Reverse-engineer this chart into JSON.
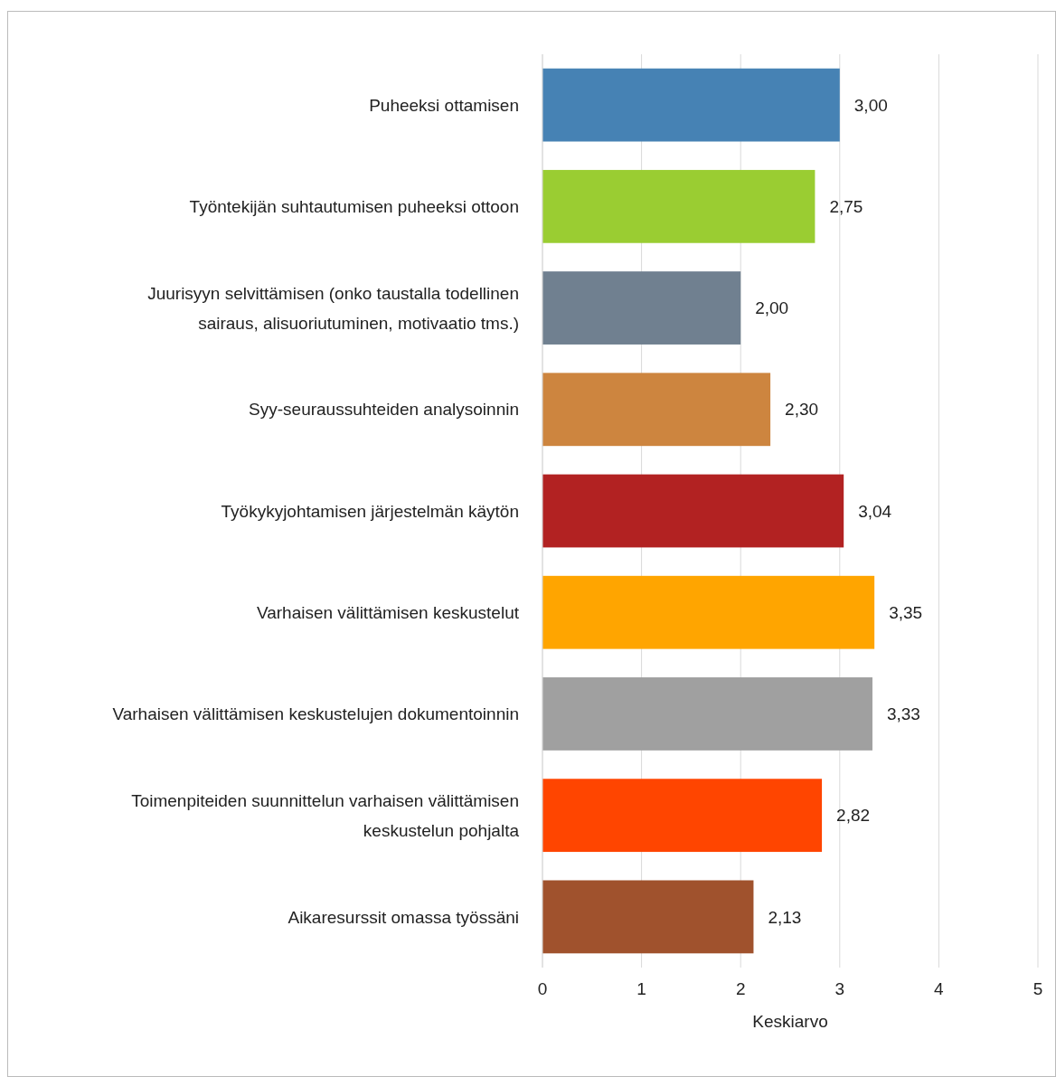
{
  "chart_data": {
    "type": "bar",
    "orientation": "horizontal",
    "xlabel": "Keskiarvo",
    "categories": [
      "Puheeksi ottamisen",
      "Työntekijän suhtautumisen puheeksi ottoon",
      "Juurisyyn selvittämisen (onko taustalla todellinen sairaus, alisuoriutuminen, motivaatio tms.)",
      "Syy-seuraussuhteiden analysoinnin",
      "Työkykyjohtamisen järjestelmän käytön",
      "Varhaisen välittämisen keskustelut",
      "Varhaisen välittämisen keskustelujen dokumentoinnin",
      "Toimenpiteiden suunnittelun varhaisen välittämisen keskustelun pohjalta",
      "Aikaresurssit omassa työssäni"
    ],
    "values": [
      3.0,
      2.75,
      2.0,
      2.3,
      3.04,
      3.35,
      3.33,
      2.82,
      2.13
    ],
    "value_labels": [
      "3,00",
      "2,75",
      "2,00",
      "2,30",
      "3,04",
      "3,35",
      "3,33",
      "2,82",
      "2,13"
    ],
    "colors": [
      "#4682b4",
      "#9acd32",
      "#708090",
      "#cd853f",
      "#b22222",
      "#ffa500",
      "#a0a0a0",
      "#ff4500",
      "#a0522d"
    ],
    "xlim": [
      0,
      5
    ],
    "xticks": [
      0,
      1,
      2,
      3,
      4,
      5
    ],
    "grid": "x"
  }
}
